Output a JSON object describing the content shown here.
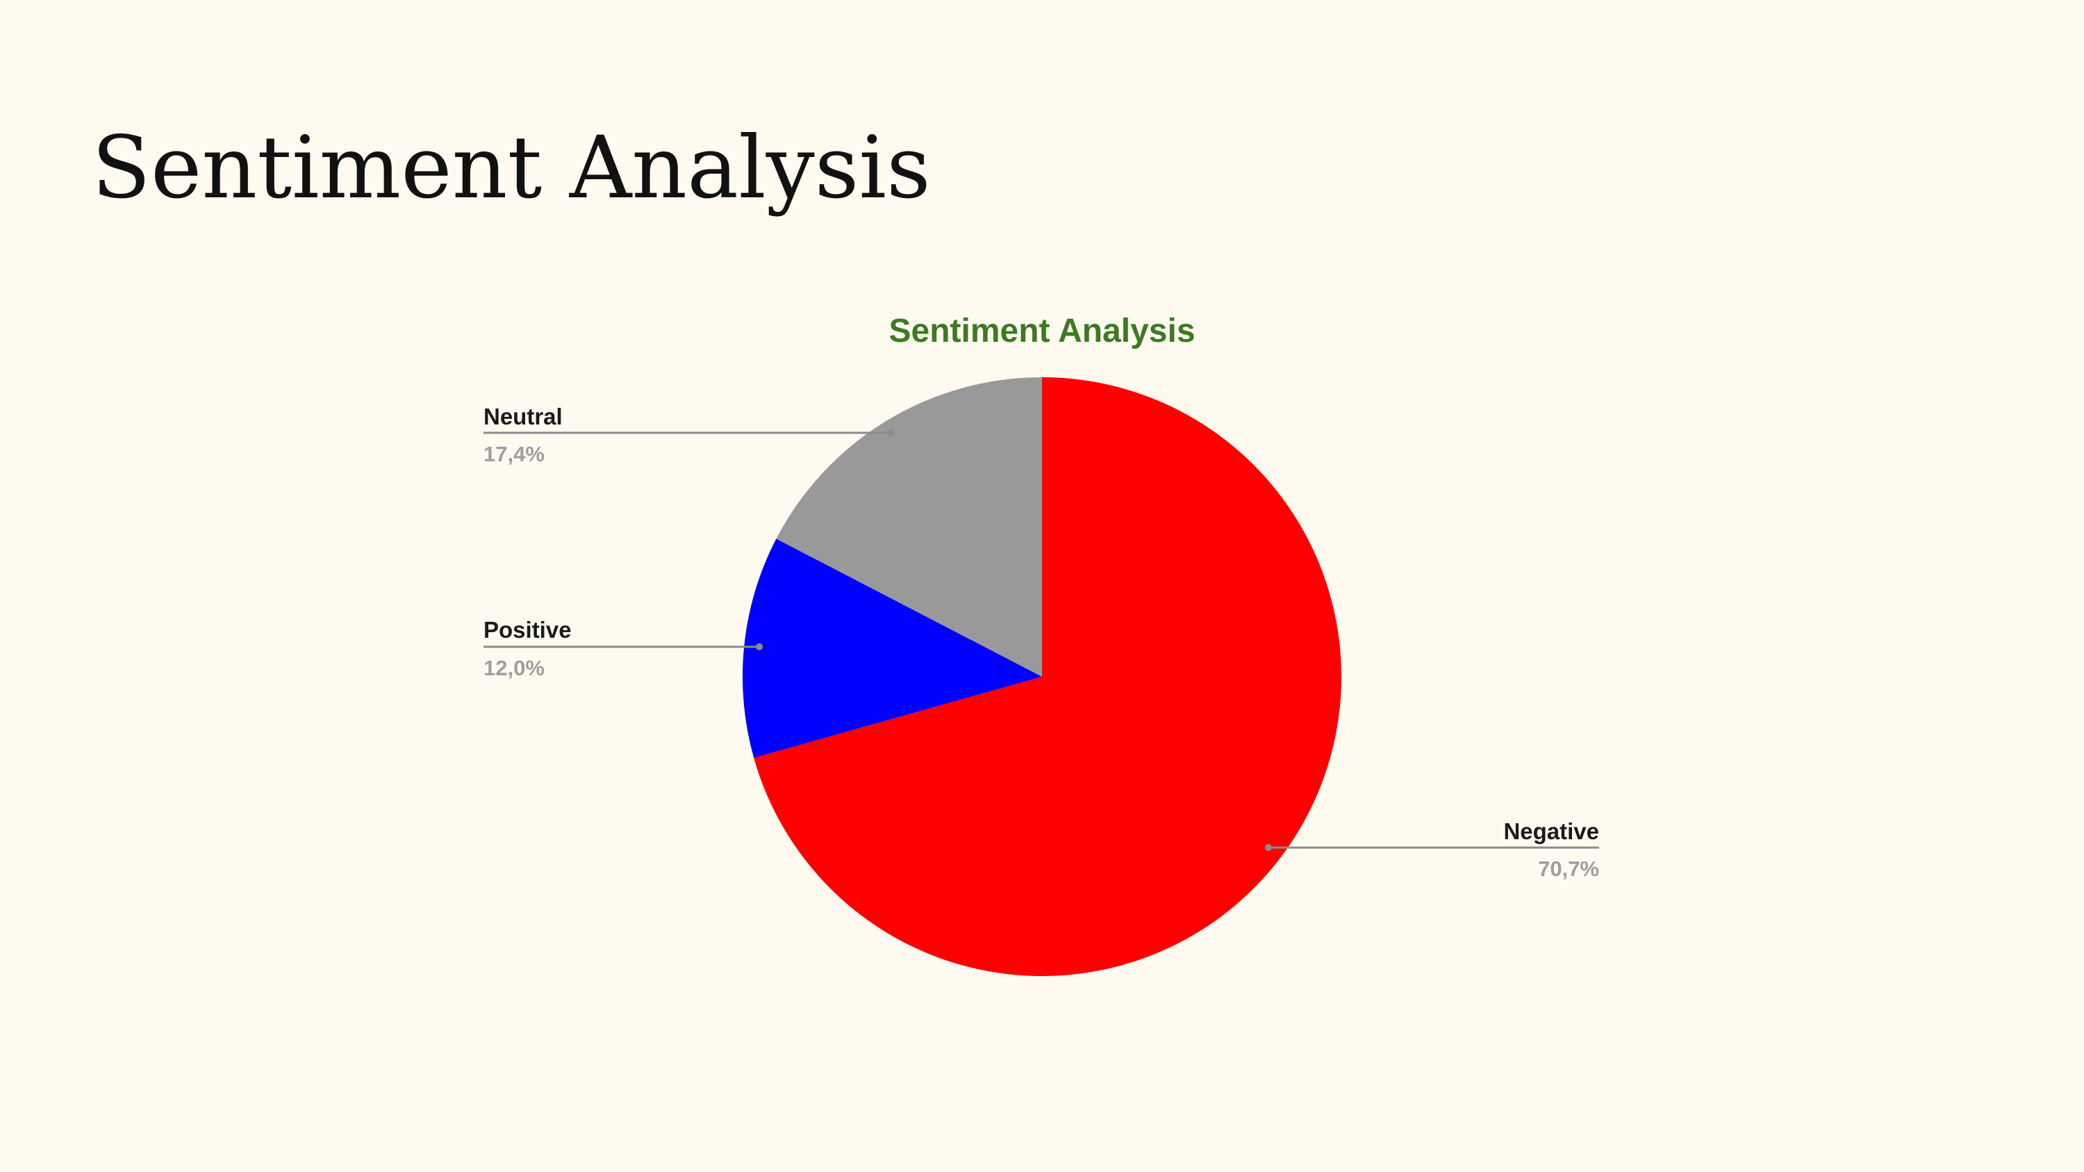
{
  "slide": {
    "title": "Sentiment Analysis"
  },
  "colors": {
    "background": "#fefaf0",
    "chart_title": "#3d7a23",
    "leader_line": "#8c8c8c",
    "percent_text": "#9e9e9e"
  },
  "chart_data": {
    "type": "pie",
    "title": "Sentiment Analysis",
    "categories": [
      "Negative",
      "Positive",
      "Neutral"
    ],
    "values": [
      70.7,
      12.0,
      17.4
    ],
    "value_labels": [
      "70,7%",
      "12,0%",
      "17,4%"
    ],
    "colors": [
      "#ff0000",
      "#0000ff",
      "#999999"
    ],
    "legend": "labels-with-leader-lines"
  }
}
